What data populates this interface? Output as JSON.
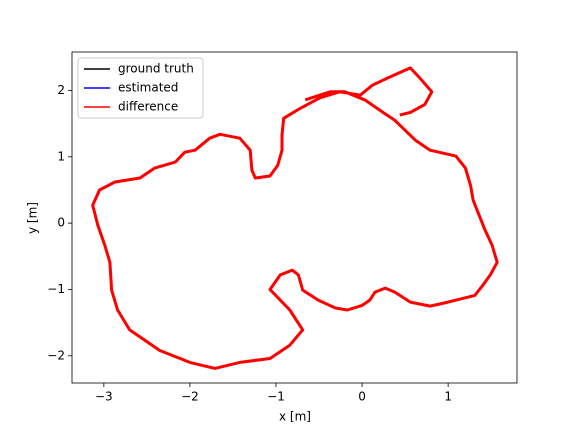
{
  "chart_data": {
    "type": "line",
    "xlabel": "x [m]",
    "ylabel": "y [m]",
    "xlim": [
      -3.37,
      1.8
    ],
    "ylim": [
      -2.41,
      2.58
    ],
    "xticks": [
      {
        "value": -3,
        "label": "−3"
      },
      {
        "value": -2,
        "label": "−2"
      },
      {
        "value": -1,
        "label": "−1"
      },
      0,
      1
    ],
    "yticks": [
      {
        "value": -2,
        "label": "−2"
      },
      {
        "value": -1,
        "label": "−1"
      },
      0,
      1,
      2
    ],
    "legend": "upper left",
    "grid": false,
    "series": [
      {
        "name": "ground truth",
        "color": "#000000",
        "x": [
          -0.66,
          -0.37,
          -0.2,
          0.03,
          0.21,
          0.38,
          0.62,
          0.79,
          1.09,
          1.2,
          1.26,
          1.29,
          1.35,
          1.43,
          1.51,
          1.57,
          1.49,
          1.4,
          1.31,
          1.0,
          0.79,
          0.56,
          0.38,
          0.27,
          0.15,
          0.09,
          0.0,
          -0.17,
          -0.31,
          -0.51,
          -0.69,
          -0.74,
          -0.81,
          -0.95,
          -1.07,
          -0.98,
          -0.84,
          -0.69,
          -0.84,
          -1.07,
          -1.42,
          -1.71,
          -2.0,
          -2.35,
          -2.7,
          -2.84,
          -2.91,
          -2.93,
          -2.99,
          -3.07,
          -3.13,
          -3.05,
          -2.87,
          -2.58,
          -2.41,
          -2.17,
          -2.06,
          -1.94,
          -1.77,
          -1.65,
          -1.42,
          -1.3,
          -1.28,
          -1.24,
          -1.07,
          -0.98,
          -0.93,
          -0.93,
          -0.91,
          -0.72,
          -0.49,
          -0.26,
          -0.02,
          0.12,
          0.3,
          0.56,
          0.67,
          0.81,
          0.73,
          0.56,
          0.44
        ],
        "values": [
          1.86,
          1.98,
          1.98,
          1.86,
          1.7,
          1.55,
          1.25,
          1.1,
          1.01,
          0.83,
          0.57,
          0.35,
          0.15,
          -0.11,
          -0.33,
          -0.59,
          -0.78,
          -0.94,
          -1.09,
          -1.19,
          -1.25,
          -1.19,
          -1.04,
          -0.98,
          -1.04,
          -1.16,
          -1.24,
          -1.31,
          -1.28,
          -1.16,
          -1.01,
          -0.78,
          -0.71,
          -0.78,
          -1.0,
          -1.12,
          -1.31,
          -1.61,
          -1.84,
          -2.04,
          -2.1,
          -2.19,
          -2.1,
          -1.92,
          -1.61,
          -1.31,
          -1.01,
          -0.59,
          -0.33,
          -0.03,
          0.27,
          0.5,
          0.62,
          0.68,
          0.83,
          0.92,
          1.07,
          1.1,
          1.28,
          1.34,
          1.28,
          1.1,
          0.8,
          0.68,
          0.71,
          0.87,
          1.1,
          1.33,
          1.58,
          1.73,
          1.89,
          1.98,
          1.93,
          2.08,
          2.19,
          2.34,
          2.19,
          1.98,
          1.79,
          1.67,
          1.63
        ]
      },
      {
        "name": "estimated",
        "color": "#0000ff",
        "x": [
          -0.66,
          -0.37,
          -0.2,
          0.03,
          0.21,
          0.38,
          0.62,
          0.79,
          1.09,
          1.2,
          1.26,
          1.29,
          1.35,
          1.43,
          1.51,
          1.57,
          1.49,
          1.4,
          1.31,
          1.0,
          0.79,
          0.56,
          0.38,
          0.27,
          0.15,
          0.09,
          0.0,
          -0.17,
          -0.31,
          -0.51,
          -0.69,
          -0.74,
          -0.81,
          -0.95,
          -1.07,
          -0.98,
          -0.84,
          -0.69,
          -0.84,
          -1.07,
          -1.42,
          -1.71,
          -2.0,
          -2.35,
          -2.7,
          -2.84,
          -2.91,
          -2.93,
          -2.99,
          -3.07,
          -3.13,
          -3.05,
          -2.87,
          -2.58,
          -2.41,
          -2.17,
          -2.06,
          -1.94,
          -1.77,
          -1.65,
          -1.42,
          -1.3,
          -1.28,
          -1.24,
          -1.07,
          -0.98,
          -0.93,
          -0.93,
          -0.91,
          -0.72,
          -0.49,
          -0.26,
          -0.02,
          0.12,
          0.3,
          0.56,
          0.67,
          0.81,
          0.73,
          0.56,
          0.44
        ],
        "values": [
          1.86,
          1.98,
          1.98,
          1.86,
          1.7,
          1.55,
          1.25,
          1.1,
          1.01,
          0.83,
          0.57,
          0.35,
          0.15,
          -0.11,
          -0.33,
          -0.59,
          -0.78,
          -0.94,
          -1.09,
          -1.19,
          -1.25,
          -1.19,
          -1.04,
          -0.98,
          -1.04,
          -1.16,
          -1.24,
          -1.31,
          -1.28,
          -1.16,
          -1.01,
          -0.78,
          -0.71,
          -0.78,
          -1.0,
          -1.12,
          -1.31,
          -1.61,
          -1.84,
          -2.04,
          -2.1,
          -2.19,
          -2.1,
          -1.92,
          -1.61,
          -1.31,
          -1.01,
          -0.59,
          -0.33,
          -0.03,
          0.27,
          0.5,
          0.62,
          0.68,
          0.83,
          0.92,
          1.07,
          1.1,
          1.28,
          1.34,
          1.28,
          1.1,
          0.8,
          0.68,
          0.71,
          0.87,
          1.1,
          1.33,
          1.58,
          1.73,
          1.89,
          1.98,
          1.93,
          2.08,
          2.19,
          2.34,
          2.19,
          1.98,
          1.79,
          1.67,
          1.63
        ]
      },
      {
        "name": "difference",
        "color": "#ff0000",
        "x": [
          -0.66,
          -0.37,
          -0.2,
          0.03,
          0.21,
          0.38,
          0.62,
          0.79,
          1.09,
          1.2,
          1.26,
          1.29,
          1.35,
          1.43,
          1.51,
          1.57,
          1.49,
          1.4,
          1.31,
          1.0,
          0.79,
          0.56,
          0.38,
          0.27,
          0.15,
          0.09,
          0.0,
          -0.17,
          -0.31,
          -0.51,
          -0.69,
          -0.74,
          -0.81,
          -0.95,
          -1.07,
          -0.98,
          -0.84,
          -0.69,
          -0.84,
          -1.07,
          -1.42,
          -1.71,
          -2.0,
          -2.35,
          -2.7,
          -2.84,
          -2.91,
          -2.93,
          -2.99,
          -3.07,
          -3.13,
          -3.05,
          -2.87,
          -2.58,
          -2.41,
          -2.17,
          -2.06,
          -1.94,
          -1.77,
          -1.65,
          -1.42,
          -1.3,
          -1.28,
          -1.24,
          -1.07,
          -0.98,
          -0.93,
          -0.93,
          -0.91,
          -0.72,
          -0.49,
          -0.26,
          -0.02,
          0.12,
          0.3,
          0.56,
          0.67,
          0.81,
          0.73,
          0.56,
          0.44
        ],
        "values": [
          1.86,
          1.98,
          1.98,
          1.86,
          1.7,
          1.55,
          1.25,
          1.1,
          1.01,
          0.83,
          0.57,
          0.35,
          0.15,
          -0.11,
          -0.33,
          -0.59,
          -0.78,
          -0.94,
          -1.09,
          -1.19,
          -1.25,
          -1.19,
          -1.04,
          -0.98,
          -1.04,
          -1.16,
          -1.24,
          -1.31,
          -1.28,
          -1.16,
          -1.01,
          -0.78,
          -0.71,
          -0.78,
          -1.0,
          -1.12,
          -1.31,
          -1.61,
          -1.84,
          -2.04,
          -2.1,
          -2.19,
          -2.1,
          -1.92,
          -1.61,
          -1.31,
          -1.01,
          -0.59,
          -0.33,
          -0.03,
          0.27,
          0.5,
          0.62,
          0.68,
          0.83,
          0.92,
          1.07,
          1.1,
          1.28,
          1.34,
          1.28,
          1.1,
          0.8,
          0.68,
          0.71,
          0.87,
          1.1,
          1.33,
          1.58,
          1.73,
          1.89,
          1.98,
          1.93,
          2.08,
          2.19,
          2.34,
          2.19,
          1.98,
          1.79,
          1.67,
          1.63
        ]
      }
    ]
  }
}
